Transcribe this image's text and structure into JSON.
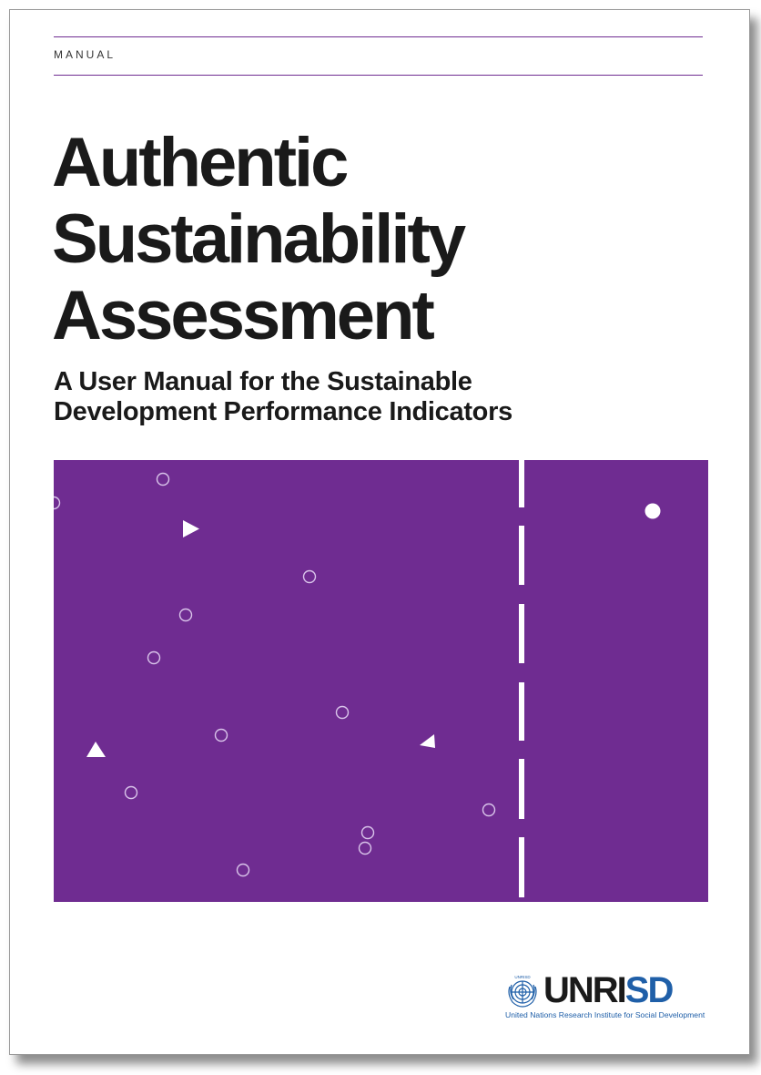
{
  "cover": {
    "label": "MANUAL",
    "title_lines": [
      "Authentic",
      "Sustainability",
      "Assessment"
    ],
    "subtitle_lines": [
      "A User Manual for the Sustainable",
      "Development Performance Indicators"
    ]
  },
  "logo": {
    "word_main": "UNRI",
    "word_accent": "SD",
    "tagline": "United Nations Research Institute for Social Development",
    "emblem_text": "UNRISD"
  },
  "colors": {
    "purple": "#6f2c91",
    "rule": "#6f2c91",
    "text": "#1a1a1a",
    "logo_blue": "#1f5fa8"
  }
}
